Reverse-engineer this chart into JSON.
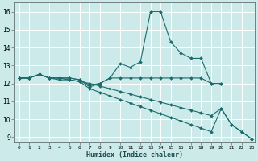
{
  "xlabel": "Humidex (Indice chaleur)",
  "bg_color": "#cdeaea",
  "grid_color": "#ffffff",
  "line_color": "#1a6b6b",
  "xlim": [
    -0.5,
    23.3
  ],
  "ylim": [
    8.7,
    16.5
  ],
  "xticks": [
    0,
    1,
    2,
    3,
    4,
    5,
    6,
    7,
    8,
    9,
    10,
    11,
    12,
    13,
    14,
    15,
    16,
    17,
    18,
    19,
    20,
    21,
    22,
    23
  ],
  "yticks": [
    9,
    10,
    11,
    12,
    13,
    14,
    15,
    16
  ],
  "series": [
    {
      "x": [
        0,
        1,
        2,
        3,
        4,
        5,
        6,
        7,
        8,
        9,
        10,
        11,
        12,
        13,
        14,
        15,
        16,
        17,
        18,
        19,
        20
      ],
      "y": [
        12.3,
        12.3,
        12.5,
        12.3,
        12.3,
        12.3,
        12.2,
        11.9,
        12.0,
        12.3,
        13.1,
        12.9,
        13.2,
        16.0,
        16.0,
        14.3,
        13.7,
        13.4,
        13.4,
        12.0,
        12.0
      ]
    },
    {
      "x": [
        0,
        1,
        2,
        3,
        4,
        5,
        6,
        7,
        8,
        9,
        10,
        11,
        12,
        13,
        14,
        15,
        16,
        17,
        18,
        19,
        20
      ],
      "y": [
        12.3,
        12.3,
        12.5,
        12.3,
        12.3,
        12.3,
        12.2,
        11.8,
        12.0,
        12.3,
        12.3,
        12.3,
        12.3,
        12.3,
        12.3,
        12.3,
        12.3,
        12.3,
        12.3,
        12.0,
        12.0
      ]
    },
    {
      "x": [
        0,
        1,
        2,
        3,
        4,
        5,
        6,
        7,
        8,
        9,
        10,
        11,
        12,
        13,
        14,
        15,
        16,
        17,
        18,
        19,
        20,
        21,
        22,
        23
      ],
      "y": [
        12.3,
        12.3,
        12.5,
        12.3,
        12.3,
        12.2,
        12.1,
        11.7,
        11.5,
        11.3,
        11.1,
        10.9,
        10.7,
        10.5,
        10.3,
        10.1,
        9.9,
        9.7,
        9.5,
        9.3,
        10.6,
        9.7,
        9.3,
        8.9
      ]
    },
    {
      "x": [
        0,
        1,
        2,
        3,
        4,
        5,
        6,
        7,
        8,
        9,
        10,
        11,
        12,
        13,
        14,
        15,
        16,
        17,
        18,
        19,
        20,
        21,
        22,
        23
      ],
      "y": [
        12.3,
        12.3,
        12.5,
        12.3,
        12.2,
        12.2,
        12.1,
        12.0,
        11.85,
        11.7,
        11.55,
        11.4,
        11.25,
        11.1,
        10.95,
        10.8,
        10.65,
        10.5,
        10.35,
        10.2,
        10.6,
        9.7,
        9.3,
        8.9
      ]
    }
  ]
}
